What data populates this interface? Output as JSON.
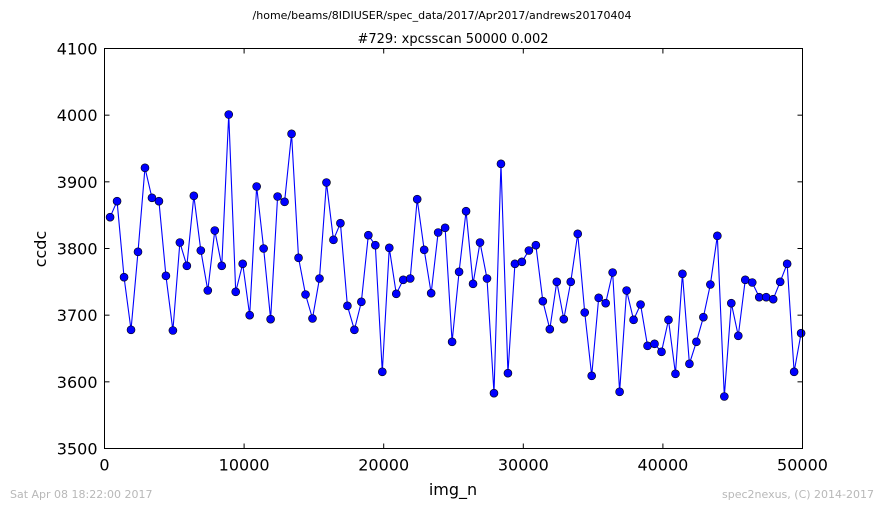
{
  "footer": {
    "left": "Sat Apr 08 18:22:00 2017",
    "right": "spec2nexus, (C) 2014-2017"
  },
  "chart_data": {
    "type": "line",
    "suptitle": "/home/beams/8IDIUSER/spec_data/2017/Apr2017/andrews20170404",
    "title": "#729: xpcsscan 50000 0.002",
    "xlabel": "img_n",
    "ylabel": "ccdc",
    "xlim": [
      0,
      50000
    ],
    "ylim": [
      3500,
      4100
    ],
    "xticks": [
      0,
      10000,
      20000,
      30000,
      40000,
      50000
    ],
    "xtick_labels": [
      "0",
      "10000",
      "20000",
      "30000",
      "40000",
      "50000"
    ],
    "yticks": [
      3500,
      3600,
      3700,
      3800,
      3900,
      4000,
      4100
    ],
    "ytick_labels": [
      "3500",
      "3600",
      "3700",
      "3800",
      "3900",
      "4000",
      "4100"
    ],
    "grid": false,
    "legend": "none",
    "series": [
      {
        "color": "#0000ff",
        "marker": "circle",
        "x": [
          400,
          900,
          1400,
          1900,
          2400,
          2900,
          3400,
          3900,
          4400,
          4900,
          5400,
          5900,
          6400,
          6900,
          7400,
          7900,
          8400,
          8900,
          9400,
          9900,
          10400,
          10900,
          11400,
          11900,
          12400,
          12900,
          13400,
          13900,
          14400,
          14900,
          15400,
          15900,
          16400,
          16900,
          17400,
          17900,
          18400,
          18900,
          19400,
          19900,
          20400,
          20900,
          21400,
          21900,
          22400,
          22900,
          23400,
          23900,
          24400,
          24900,
          25400,
          25900,
          26400,
          26900,
          27400,
          27900,
          28400,
          28900,
          29400,
          29900,
          30400,
          30900,
          31400,
          31900,
          32400,
          32900,
          33400,
          33900,
          34400,
          34900,
          35400,
          35900,
          36400,
          36900,
          37400,
          37900,
          38400,
          38900,
          39400,
          39900,
          40400,
          40900,
          41400,
          41900,
          42400,
          42900,
          43400,
          43900,
          44400,
          44900,
          45400,
          45900,
          46400,
          46900,
          47400,
          47900,
          48400,
          48900,
          49400,
          49900
        ],
        "y": [
          3847,
          3871,
          3757,
          3678,
          3795,
          3921,
          3876,
          3871,
          3759,
          3677,
          3809,
          3774,
          3879,
          3797,
          3737,
          3827,
          3774,
          4001,
          3735,
          3777,
          3700,
          3893,
          3800,
          3694,
          3878,
          3870,
          3972,
          3786,
          3731,
          3695,
          3755,
          3899,
          3813,
          3838,
          3714,
          3678,
          3720,
          3820,
          3805,
          3615,
          3801,
          3732,
          3753,
          3755,
          3874,
          3798,
          3733,
          3824,
          3831,
          3660,
          3765,
          3856,
          3747,
          3809,
          3755,
          3583,
          3927,
          3613,
          3777,
          3780,
          3797,
          3805,
          3721,
          3679,
          3750,
          3694,
          3750,
          3822,
          3704,
          3609,
          3726,
          3718,
          3764,
          3585,
          3737,
          3693,
          3716,
          3654,
          3657,
          3645,
          3693,
          3612,
          3762,
          3627,
          3660,
          3697,
          3746,
          3819,
          3578,
          3718,
          3669,
          3753,
          3749,
          3727,
          3727,
          3724,
          3750,
          3777,
          3615,
          3673
        ]
      }
    ]
  }
}
